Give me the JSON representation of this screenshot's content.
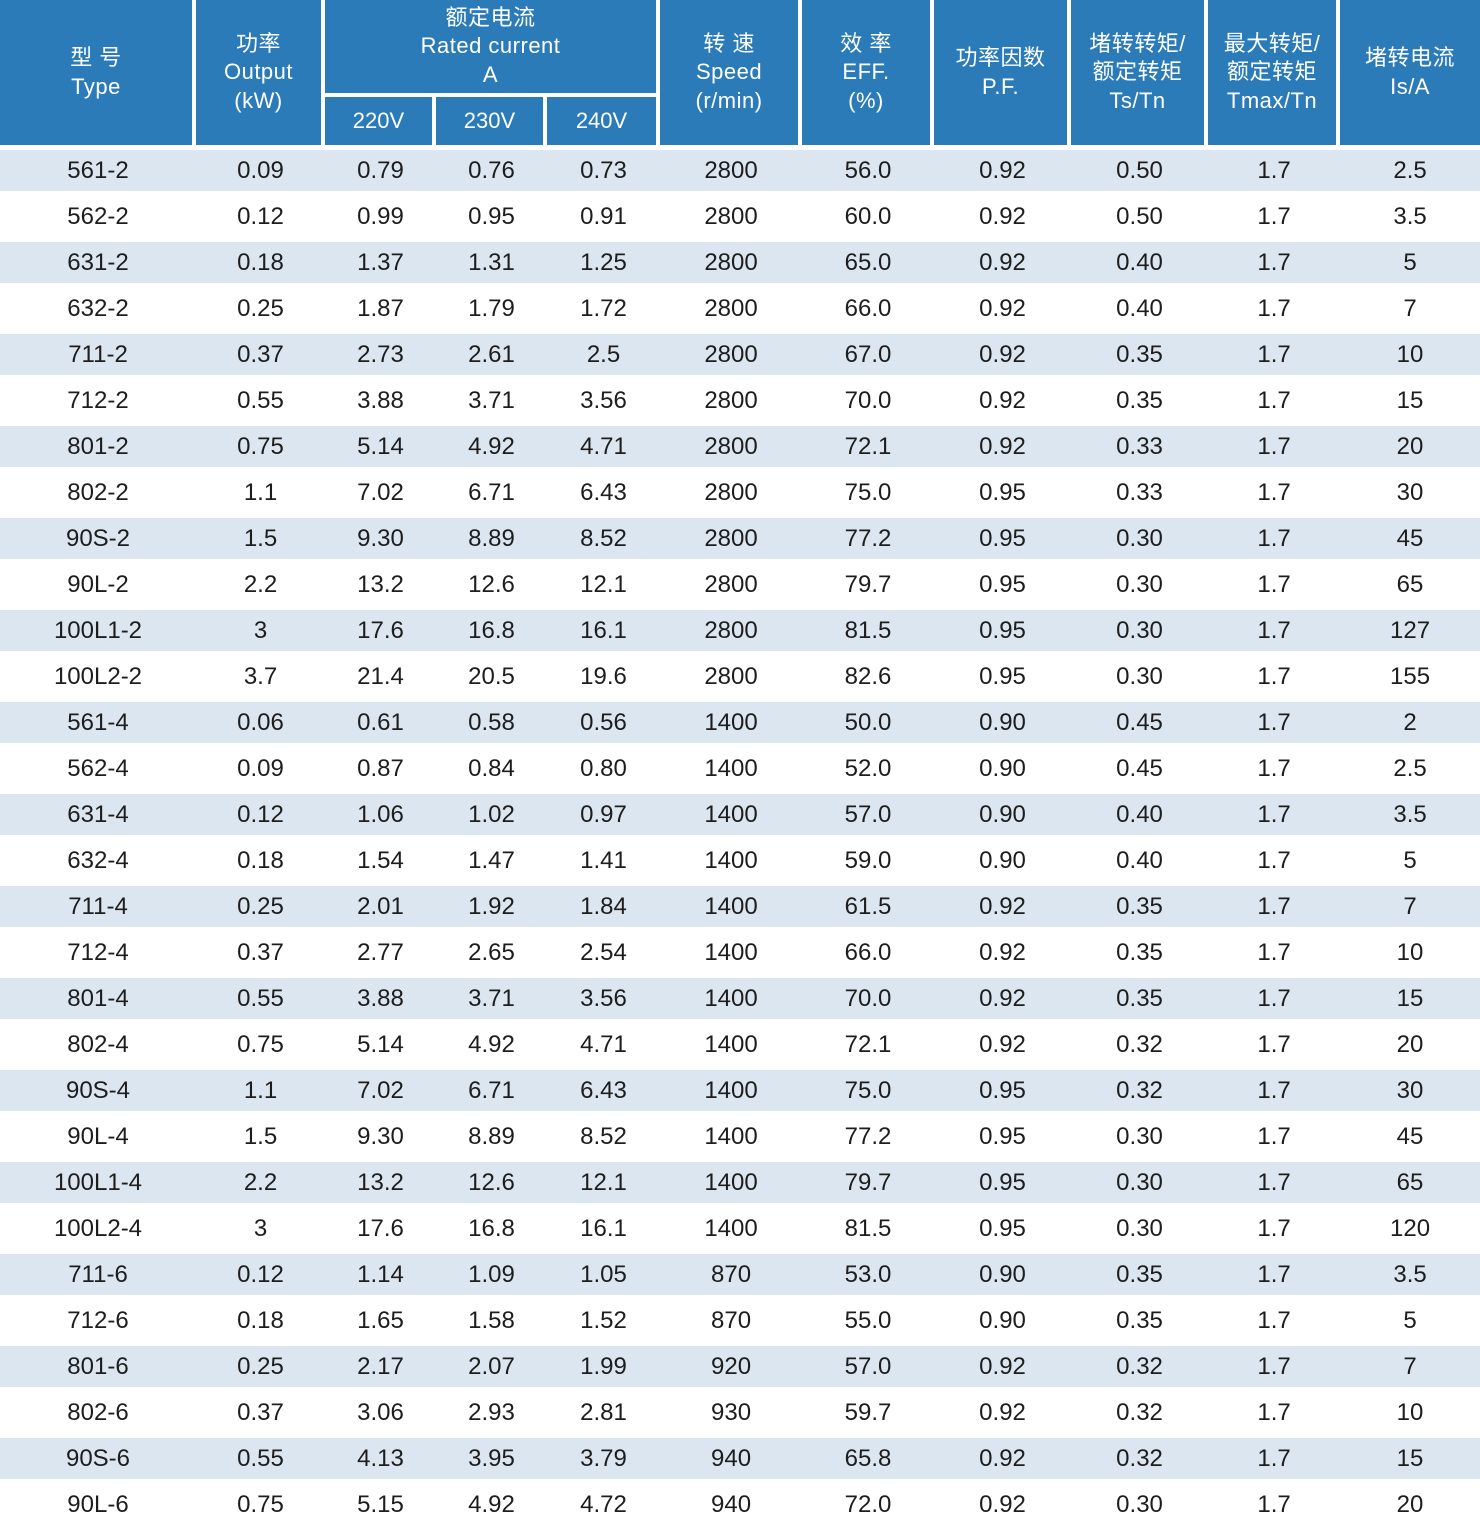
{
  "colors": {
    "header_bg": "#2B7BB9",
    "header_text": "#FFFFFF",
    "row_stripe_bg": "#DCE6F0",
    "row_plain_bg": "#FFFFFF",
    "body_text": "#1D1D1D"
  },
  "table": {
    "header": {
      "type_zh": "型 号",
      "type_en": "Type",
      "output_zh": "功率",
      "output_en": "Output",
      "output_unit": "(kW)",
      "rated_current_zh": "额定电流",
      "rated_current_en": "Rated current",
      "rated_current_unit": "A",
      "voltages": [
        "220V",
        "230V",
        "240V"
      ],
      "speed_zh": "转 速",
      "speed_en": "Speed",
      "speed_unit": "(r/min)",
      "eff_zh": "效 率",
      "eff_en": "EFF.",
      "eff_unit": "(%)",
      "pf_zh": "功率因数",
      "pf_en": "P.F.",
      "ts_zh_line1": "堵转转矩/",
      "ts_zh_line2": "额定转矩",
      "ts_en": "Ts/Tn",
      "tmax_zh_line1": "最大转矩/",
      "tmax_zh_line2": "额定转矩",
      "tmax_en": "Tmax/Tn",
      "is_zh": "堵转电流",
      "is_en": "Is/A"
    },
    "column_keys": [
      "type",
      "output-kw",
      "current-220v",
      "current-230v",
      "current-240v",
      "speed",
      "eff",
      "pf",
      "ts-tn",
      "tmax-tn",
      "is-a"
    ],
    "rows": [
      [
        "561-2",
        "0.09",
        "0.79",
        "0.76",
        "0.73",
        "2800",
        "56.0",
        "0.92",
        "0.50",
        "1.7",
        "2.5"
      ],
      [
        "562-2",
        "0.12",
        "0.99",
        "0.95",
        "0.91",
        "2800",
        "60.0",
        "0.92",
        "0.50",
        "1.7",
        "3.5"
      ],
      [
        "631-2",
        "0.18",
        "1.37",
        "1.31",
        "1.25",
        "2800",
        "65.0",
        "0.92",
        "0.40",
        "1.7",
        "5"
      ],
      [
        "632-2",
        "0.25",
        "1.87",
        "1.79",
        "1.72",
        "2800",
        "66.0",
        "0.92",
        "0.40",
        "1.7",
        "7"
      ],
      [
        "711-2",
        "0.37",
        "2.73",
        "2.61",
        "2.5",
        "2800",
        "67.0",
        "0.92",
        "0.35",
        "1.7",
        "10"
      ],
      [
        "712-2",
        "0.55",
        "3.88",
        "3.71",
        "3.56",
        "2800",
        "70.0",
        "0.92",
        "0.35",
        "1.7",
        "15"
      ],
      [
        "801-2",
        "0.75",
        "5.14",
        "4.92",
        "4.71",
        "2800",
        "72.1",
        "0.92",
        "0.33",
        "1.7",
        "20"
      ],
      [
        "802-2",
        "1.1",
        "7.02",
        "6.71",
        "6.43",
        "2800",
        "75.0",
        "0.95",
        "0.33",
        "1.7",
        "30"
      ],
      [
        "90S-2",
        "1.5",
        "9.30",
        "8.89",
        "8.52",
        "2800",
        "77.2",
        "0.95",
        "0.30",
        "1.7",
        "45"
      ],
      [
        "90L-2",
        "2.2",
        "13.2",
        "12.6",
        "12.1",
        "2800",
        "79.7",
        "0.95",
        "0.30",
        "1.7",
        "65"
      ],
      [
        "100L1-2",
        "3",
        "17.6",
        "16.8",
        "16.1",
        "2800",
        "81.5",
        "0.95",
        "0.30",
        "1.7",
        "127"
      ],
      [
        "100L2-2",
        "3.7",
        "21.4",
        "20.5",
        "19.6",
        "2800",
        "82.6",
        "0.95",
        "0.30",
        "1.7",
        "155"
      ],
      [
        "561-4",
        "0.06",
        "0.61",
        "0.58",
        "0.56",
        "1400",
        "50.0",
        "0.90",
        "0.45",
        "1.7",
        "2"
      ],
      [
        "562-4",
        "0.09",
        "0.87",
        "0.84",
        "0.80",
        "1400",
        "52.0",
        "0.90",
        "0.45",
        "1.7",
        "2.5"
      ],
      [
        "631-4",
        "0.12",
        "1.06",
        "1.02",
        "0.97",
        "1400",
        "57.0",
        "0.90",
        "0.40",
        "1.7",
        "3.5"
      ],
      [
        "632-4",
        "0.18",
        "1.54",
        "1.47",
        "1.41",
        "1400",
        "59.0",
        "0.90",
        "0.40",
        "1.7",
        "5"
      ],
      [
        "711-4",
        "0.25",
        "2.01",
        "1.92",
        "1.84",
        "1400",
        "61.5",
        "0.92",
        "0.35",
        "1.7",
        "7"
      ],
      [
        "712-4",
        "0.37",
        "2.77",
        "2.65",
        "2.54",
        "1400",
        "66.0",
        "0.92",
        "0.35",
        "1.7",
        "10"
      ],
      [
        "801-4",
        "0.55",
        "3.88",
        "3.71",
        "3.56",
        "1400",
        "70.0",
        "0.92",
        "0.35",
        "1.7",
        "15"
      ],
      [
        "802-4",
        "0.75",
        "5.14",
        "4.92",
        "4.71",
        "1400",
        "72.1",
        "0.92",
        "0.32",
        "1.7",
        "20"
      ],
      [
        "90S-4",
        "1.1",
        "7.02",
        "6.71",
        "6.43",
        "1400",
        "75.0",
        "0.95",
        "0.32",
        "1.7",
        "30"
      ],
      [
        "90L-4",
        "1.5",
        "9.30",
        "8.89",
        "8.52",
        "1400",
        "77.2",
        "0.95",
        "0.30",
        "1.7",
        "45"
      ],
      [
        "100L1-4",
        "2.2",
        "13.2",
        "12.6",
        "12.1",
        "1400",
        "79.7",
        "0.95",
        "0.30",
        "1.7",
        "65"
      ],
      [
        "100L2-4",
        "3",
        "17.6",
        "16.8",
        "16.1",
        "1400",
        "81.5",
        "0.95",
        "0.30",
        "1.7",
        "120"
      ],
      [
        "711-6",
        "0.12",
        "1.14",
        "1.09",
        "1.05",
        "870",
        "53.0",
        "0.90",
        "0.35",
        "1.7",
        "3.5"
      ],
      [
        "712-6",
        "0.18",
        "1.65",
        "1.58",
        "1.52",
        "870",
        "55.0",
        "0.90",
        "0.35",
        "1.7",
        "5"
      ],
      [
        "801-6",
        "0.25",
        "2.17",
        "2.07",
        "1.99",
        "920",
        "57.0",
        "0.92",
        "0.32",
        "1.7",
        "7"
      ],
      [
        "802-6",
        "0.37",
        "3.06",
        "2.93",
        "2.81",
        "930",
        "59.7",
        "0.92",
        "0.32",
        "1.7",
        "10"
      ],
      [
        "90S-6",
        "0.55",
        "4.13",
        "3.95",
        "3.79",
        "940",
        "65.8",
        "0.92",
        "0.32",
        "1.7",
        "15"
      ],
      [
        "90L-6",
        "0.75",
        "5.15",
        "4.92",
        "4.72",
        "940",
        "72.0",
        "0.92",
        "0.30",
        "1.7",
        "20"
      ]
    ]
  }
}
